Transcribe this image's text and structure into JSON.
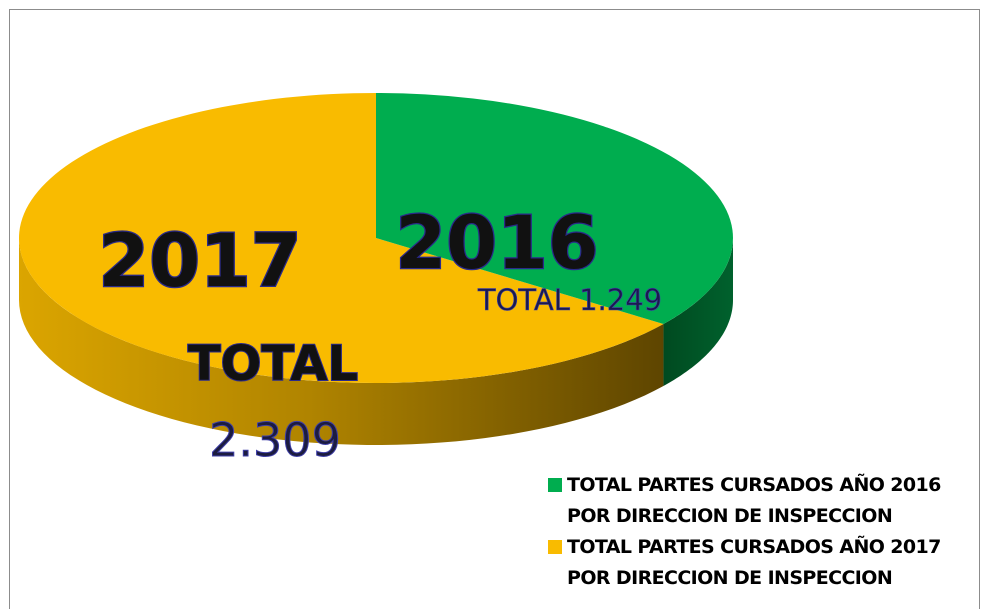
{
  "chart_data": {
    "type": "pie",
    "style": "3d",
    "slices": [
      {
        "label": "2016",
        "total_label": "TOTAL 1.249",
        "value": 1249,
        "color": "#00ad4f",
        "side_color": "#005827"
      },
      {
        "label": "2017",
        "total_line1": "TOTAL",
        "total_line2": "2.309",
        "value": 2309,
        "color": "#f9bb00",
        "side_color": "#8a6600"
      }
    ],
    "legend": {
      "position": "bottom-right",
      "items": [
        {
          "line1": "TOTAL PARTES CURSADOS AÑO 2016",
          "line2": "POR DIRECCION DE INSPECCION",
          "color": "#00ad4f"
        },
        {
          "line1": "TOTAL PARTES CURSADOS AÑO 2017",
          "line2": "POR DIRECCION DE INSPECCION",
          "color": "#f9bb00"
        }
      ]
    }
  }
}
